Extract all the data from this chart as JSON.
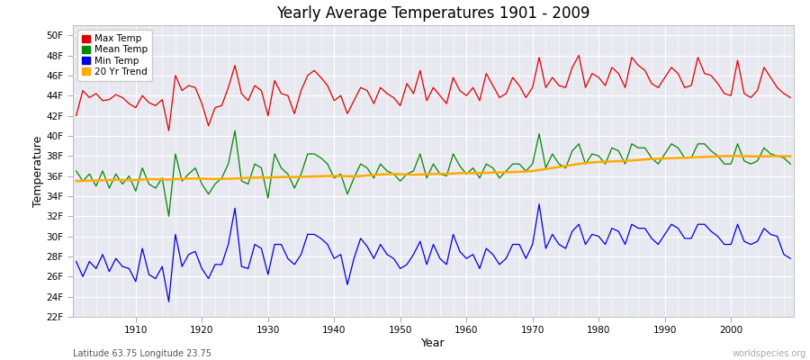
{
  "title": "Yearly Average Temperatures 1901 - 2009",
  "xlabel": "Year",
  "ylabel": "Temperature",
  "lat_lon_label": "Latitude 63.75 Longitude 23.75",
  "watermark": "worldspecies.org",
  "year_start": 1901,
  "year_end": 2009,
  "ylim": [
    22,
    51
  ],
  "yticks": [
    22,
    24,
    26,
    28,
    30,
    32,
    34,
    36,
    38,
    40,
    42,
    44,
    46,
    48,
    50
  ],
  "ytick_labels": [
    "22F",
    "24F",
    "26F",
    "28F",
    "30F",
    "32F",
    "34F",
    "36F",
    "38F",
    "40F",
    "42F",
    "44F",
    "46F",
    "48F",
    "50F"
  ],
  "xticks": [
    1910,
    1920,
    1930,
    1940,
    1950,
    1960,
    1970,
    1980,
    1990,
    2000
  ],
  "colors": {
    "max_temp": "#dd0000",
    "mean_temp": "#008800",
    "min_temp": "#0000dd",
    "trend": "#ffaa00",
    "fig_bg": "#ffffff",
    "plot_bg": "#e8e8f0"
  },
  "legend": {
    "max_label": "Max Temp",
    "mean_label": "Mean Temp",
    "min_label": "Min Temp",
    "trend_label": "20 Yr Trend"
  },
  "max_temp": [
    42.0,
    44.5,
    43.8,
    44.2,
    43.5,
    43.6,
    44.1,
    43.8,
    43.2,
    42.8,
    44.0,
    43.3,
    43.0,
    43.6,
    40.5,
    46.0,
    44.5,
    45.0,
    44.8,
    43.2,
    41.0,
    42.8,
    43.0,
    44.8,
    47.0,
    44.2,
    43.5,
    45.0,
    44.5,
    42.0,
    45.5,
    44.2,
    44.0,
    42.2,
    44.5,
    46.0,
    46.5,
    45.8,
    45.0,
    43.5,
    44.0,
    42.2,
    43.5,
    44.8,
    44.5,
    43.2,
    44.8,
    44.2,
    43.8,
    43.0,
    45.2,
    44.2,
    46.5,
    43.5,
    44.8,
    44.0,
    43.2,
    45.8,
    44.5,
    44.0,
    44.8,
    43.5,
    46.2,
    45.0,
    43.8,
    44.2,
    45.8,
    45.0,
    43.8,
    44.8,
    47.8,
    44.8,
    45.8,
    45.0,
    44.8,
    46.8,
    48.0,
    44.8,
    46.2,
    45.8,
    45.0,
    46.8,
    46.2,
    44.8,
    47.8,
    47.0,
    46.5,
    45.2,
    44.8,
    45.8,
    46.8,
    46.2,
    44.8,
    45.0,
    47.8,
    46.2,
    46.0,
    45.2,
    44.2,
    44.0,
    47.5,
    44.2,
    43.8,
    44.5,
    46.8,
    45.8,
    44.8,
    44.2,
    43.8
  ],
  "mean_temp": [
    36.5,
    35.5,
    36.2,
    35.0,
    36.5,
    34.8,
    36.2,
    35.2,
    36.0,
    34.5,
    36.8,
    35.2,
    34.8,
    35.8,
    32.0,
    38.2,
    35.5,
    36.2,
    36.8,
    35.2,
    34.2,
    35.2,
    35.8,
    37.2,
    40.5,
    35.5,
    35.2,
    37.2,
    36.8,
    33.8,
    38.2,
    36.8,
    36.2,
    34.8,
    36.2,
    38.2,
    38.2,
    37.8,
    37.2,
    35.8,
    36.2,
    34.2,
    35.8,
    37.2,
    36.8,
    35.8,
    37.2,
    36.5,
    36.2,
    35.5,
    36.2,
    36.5,
    38.2,
    35.8,
    37.2,
    36.2,
    36.0,
    38.2,
    37.0,
    36.2,
    36.8,
    35.8,
    37.2,
    36.8,
    35.8,
    36.5,
    37.2,
    37.2,
    36.5,
    37.2,
    40.2,
    36.8,
    38.2,
    37.2,
    36.8,
    38.5,
    39.2,
    37.2,
    38.2,
    38.0,
    37.2,
    38.8,
    38.5,
    37.2,
    39.2,
    38.8,
    38.8,
    37.8,
    37.2,
    38.2,
    39.2,
    38.8,
    37.8,
    37.8,
    39.2,
    39.2,
    38.5,
    38.0,
    37.2,
    37.2,
    39.2,
    37.5,
    37.2,
    37.5,
    38.8,
    38.2,
    38.0,
    37.8,
    37.2
  ],
  "min_temp": [
    27.5,
    26.0,
    27.5,
    26.8,
    28.2,
    26.5,
    27.8,
    27.0,
    26.8,
    25.5,
    28.8,
    26.2,
    25.8,
    27.0,
    23.5,
    30.2,
    27.0,
    28.2,
    28.5,
    26.8,
    25.8,
    27.2,
    27.2,
    29.2,
    32.8,
    27.0,
    26.8,
    29.2,
    28.8,
    26.2,
    29.2,
    29.2,
    27.8,
    27.2,
    28.2,
    30.2,
    30.2,
    29.8,
    29.2,
    27.8,
    28.2,
    25.2,
    27.8,
    29.8,
    29.0,
    27.8,
    29.2,
    28.2,
    27.8,
    26.8,
    27.2,
    28.2,
    29.5,
    27.2,
    29.2,
    27.8,
    27.2,
    30.2,
    28.5,
    27.8,
    28.2,
    26.8,
    28.8,
    28.2,
    27.2,
    27.8,
    29.2,
    29.2,
    27.8,
    29.2,
    33.2,
    28.8,
    30.2,
    29.2,
    28.8,
    30.5,
    31.2,
    29.2,
    30.2,
    30.0,
    29.2,
    30.8,
    30.5,
    29.2,
    31.2,
    30.8,
    30.8,
    29.8,
    29.2,
    30.2,
    31.2,
    30.8,
    29.8,
    29.8,
    31.2,
    31.2,
    30.5,
    30.0,
    29.2,
    29.2,
    31.2,
    29.5,
    29.2,
    29.5,
    30.8,
    30.2,
    30.0,
    28.2,
    27.8
  ],
  "trend_values": [
    35.5,
    35.52,
    35.54,
    35.56,
    35.58,
    35.6,
    35.62,
    35.6,
    35.58,
    35.6,
    35.65,
    35.7,
    35.68,
    35.66,
    35.64,
    35.7,
    35.72,
    35.74,
    35.76,
    35.74,
    35.72,
    35.7,
    35.72,
    35.74,
    35.76,
    35.8,
    35.82,
    35.84,
    35.86,
    35.84,
    35.88,
    35.9,
    35.92,
    35.9,
    35.92,
    35.94,
    35.96,
    35.98,
    36.0,
    36.0,
    36.0,
    35.98,
    35.96,
    36.0,
    36.05,
    36.1,
    36.15,
    36.18,
    36.2,
    36.18,
    36.15,
    36.12,
    36.15,
    36.18,
    36.2,
    36.22,
    36.2,
    36.25,
    36.28,
    36.3,
    36.28,
    36.3,
    36.32,
    36.34,
    36.35,
    36.38,
    36.4,
    36.42,
    36.45,
    36.5,
    36.6,
    36.7,
    36.8,
    36.9,
    37.0,
    37.1,
    37.2,
    37.3,
    37.35,
    37.4,
    37.42,
    37.45,
    37.48,
    37.5,
    37.55,
    37.6,
    37.65,
    37.7,
    37.72,
    37.75,
    37.78,
    37.8,
    37.82,
    37.85,
    37.88,
    37.9,
    37.92,
    37.95,
    37.98,
    38.0,
    38.0,
    37.98,
    37.96,
    37.95,
    37.96,
    37.97,
    37.98,
    37.97,
    37.96
  ]
}
